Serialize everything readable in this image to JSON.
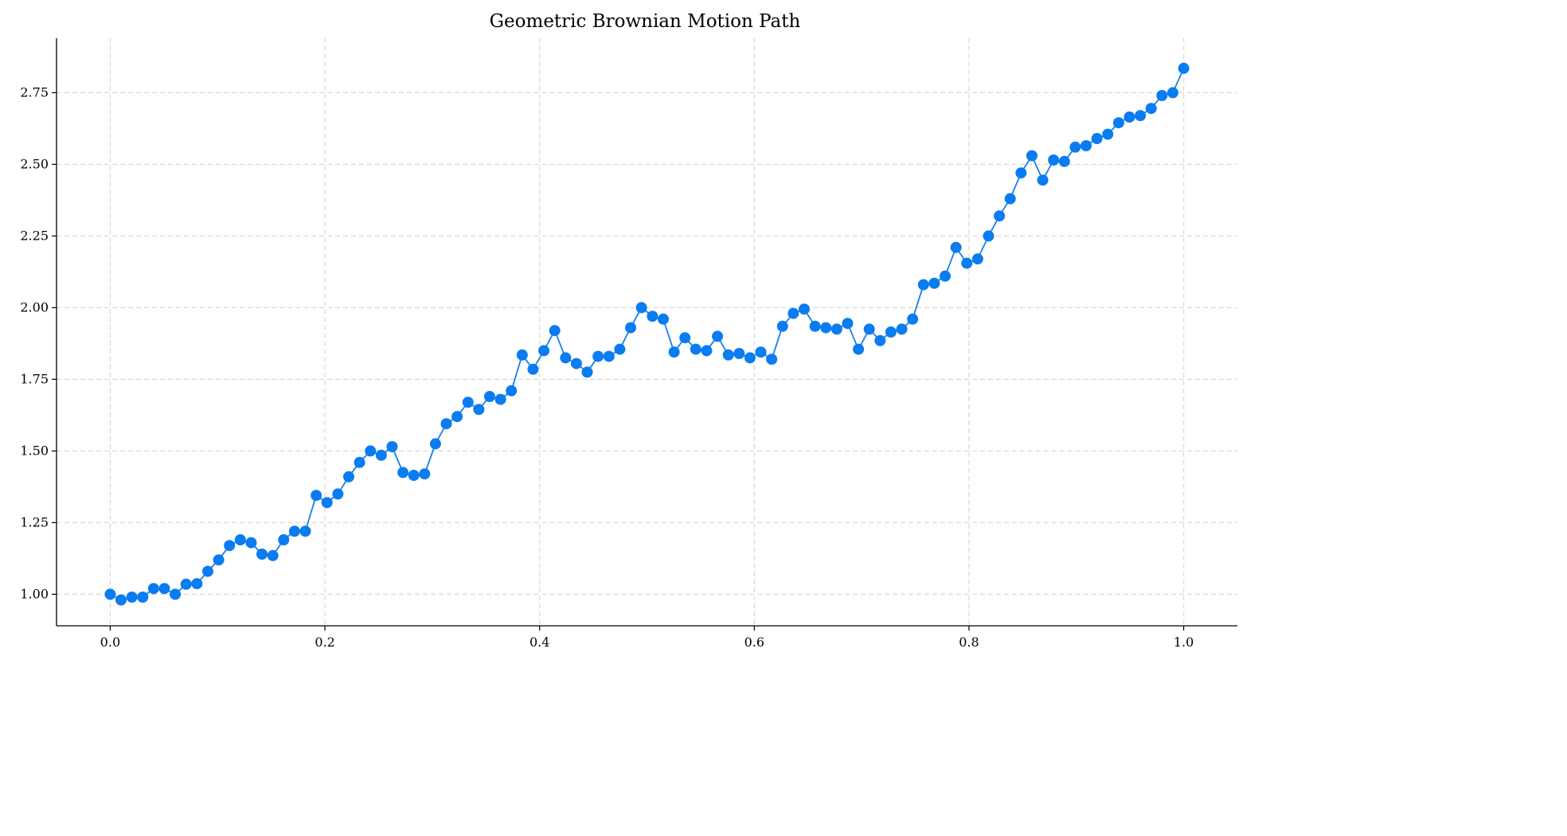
{
  "chart_data": {
    "type": "line",
    "title": "Geometric Brownian Motion Path",
    "xlabel": "",
    "ylabel": "",
    "xlim": [
      -0.05,
      1.05
    ],
    "ylim": [
      0.89,
      2.94
    ],
    "xticks": [
      0.0,
      0.2,
      0.4,
      0.6,
      0.8,
      1.0
    ],
    "xtick_labels": [
      "0.0",
      "0.2",
      "0.4",
      "0.6",
      "0.8",
      "1.0"
    ],
    "yticks": [
      1.0,
      1.25,
      1.5,
      1.75,
      2.0,
      2.25,
      2.5,
      2.75
    ],
    "ytick_labels": [
      "1.00",
      "1.25",
      "1.50",
      "1.75",
      "2.00",
      "2.25",
      "2.50",
      "2.75"
    ],
    "grid": true,
    "color": "#0a7cf2",
    "series": [
      {
        "x": [
          0.0,
          0.0101,
          0.0202,
          0.0303,
          0.0404,
          0.0505,
          0.0606,
          0.0707,
          0.0808,
          0.0909,
          0.101,
          0.1111,
          0.1212,
          0.1313,
          0.1414,
          0.1515,
          0.1616,
          0.1717,
          0.1818,
          0.1919,
          0.202,
          0.2121,
          0.2222,
          0.2323,
          0.2424,
          0.2525,
          0.2626,
          0.2727,
          0.2828,
          0.2929,
          0.303,
          0.3131,
          0.3232,
          0.3333,
          0.3434,
          0.3535,
          0.3636,
          0.3737,
          0.3838,
          0.3939,
          0.404,
          0.4141,
          0.4242,
          0.4343,
          0.4444,
          0.4545,
          0.4646,
          0.4747,
          0.4848,
          0.4949,
          0.5051,
          0.5152,
          0.5253,
          0.5354,
          0.5455,
          0.5556,
          0.5657,
          0.5758,
          0.5859,
          0.596,
          0.6061,
          0.6162,
          0.6263,
          0.6364,
          0.6465,
          0.6566,
          0.6667,
          0.6768,
          0.6869,
          0.697,
          0.7071,
          0.7172,
          0.7273,
          0.7374,
          0.7475,
          0.7576,
          0.7677,
          0.7778,
          0.7879,
          0.798,
          0.8081,
          0.8182,
          0.8283,
          0.8384,
          0.8485,
          0.8586,
          0.8687,
          0.8788,
          0.8889,
          0.899,
          0.9091,
          0.9192,
          0.9293,
          0.9394,
          0.9495,
          0.9596,
          0.9697,
          0.9798,
          0.9899,
          1.0
        ],
        "y": [
          1.0,
          0.98,
          0.99,
          0.99,
          1.02,
          1.02,
          1.0,
          1.035,
          1.037,
          1.08,
          1.12,
          1.17,
          1.19,
          1.18,
          1.14,
          1.135,
          1.19,
          1.22,
          1.22,
          1.345,
          1.32,
          1.35,
          1.41,
          1.46,
          1.5,
          1.485,
          1.515,
          1.425,
          1.415,
          1.42,
          1.525,
          1.595,
          1.62,
          1.67,
          1.645,
          1.69,
          1.68,
          1.71,
          1.835,
          1.785,
          1.85,
          1.92,
          1.825,
          1.805,
          1.775,
          1.83,
          1.83,
          1.855,
          1.93,
          2.0,
          1.97,
          1.96,
          1.845,
          1.895,
          1.855,
          1.85,
          1.9,
          1.835,
          1.84,
          1.825,
          1.845,
          1.82,
          1.935,
          1.98,
          1.995,
          1.935,
          1.93,
          1.925,
          1.945,
          1.855,
          1.925,
          1.885,
          1.915,
          1.925,
          1.96,
          2.08,
          2.085,
          2.11,
          2.21,
          2.155,
          2.17,
          2.25,
          2.32,
          2.38,
          2.47,
          2.53,
          2.445,
          2.515,
          2.51,
          2.56,
          2.565,
          2.59,
          2.605,
          2.645,
          2.665,
          2.67,
          2.695,
          2.74,
          2.75,
          2.835
        ]
      }
    ]
  }
}
